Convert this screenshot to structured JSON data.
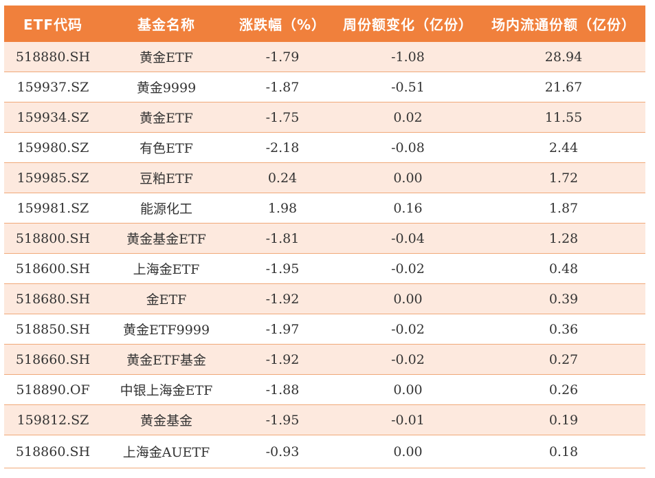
{
  "table": {
    "headers": [
      "ETF代码",
      "基金名称",
      "涨跌幅（%）",
      "周份额变化（亿份）",
      "场内流通份额（亿份）"
    ],
    "rows": [
      [
        "518880.SH",
        "黄金ETF",
        "-1.79",
        "-1.08",
        "28.94"
      ],
      [
        "159937.SZ",
        "黄金9999",
        "-1.87",
        "-0.51",
        "21.67"
      ],
      [
        "159934.SZ",
        "黄金ETF",
        "-1.75",
        "0.02",
        "11.55"
      ],
      [
        "159980.SZ",
        "有色ETF",
        "-2.18",
        "-0.08",
        "2.44"
      ],
      [
        "159985.SZ",
        "豆粕ETF",
        "0.24",
        "0.00",
        "1.72"
      ],
      [
        "159981.SZ",
        "能源化工",
        "1.98",
        "0.16",
        "1.87"
      ],
      [
        "518800.SH",
        "黄金基金ETF",
        "-1.81",
        "-0.04",
        "1.28"
      ],
      [
        "518600.SH",
        "上海金ETF",
        "-1.95",
        "-0.02",
        "0.48"
      ],
      [
        "518680.SH",
        "金ETF",
        "-1.92",
        "0.00",
        "0.39"
      ],
      [
        "518850.SH",
        "黄金ETF9999",
        "-1.97",
        "-0.02",
        "0.36"
      ],
      [
        "518660.SH",
        "黄金ETF基金",
        "-1.92",
        "-0.02",
        "0.27"
      ],
      [
        "518890.OF",
        "中银上海金ETF",
        "-1.88",
        "0.00",
        "0.26"
      ],
      [
        "159812.SZ",
        "黄金基金",
        "-1.95",
        "-0.01",
        "0.19"
      ],
      [
        "518860.SH",
        "上海金AUETF",
        "-0.93",
        "0.00",
        "0.18"
      ]
    ]
  },
  "colors": {
    "header_bg": "#f0803c",
    "header_text": "#ffffff",
    "alt_row_bg": "#fde9de",
    "row_border": "#f0a878"
  }
}
